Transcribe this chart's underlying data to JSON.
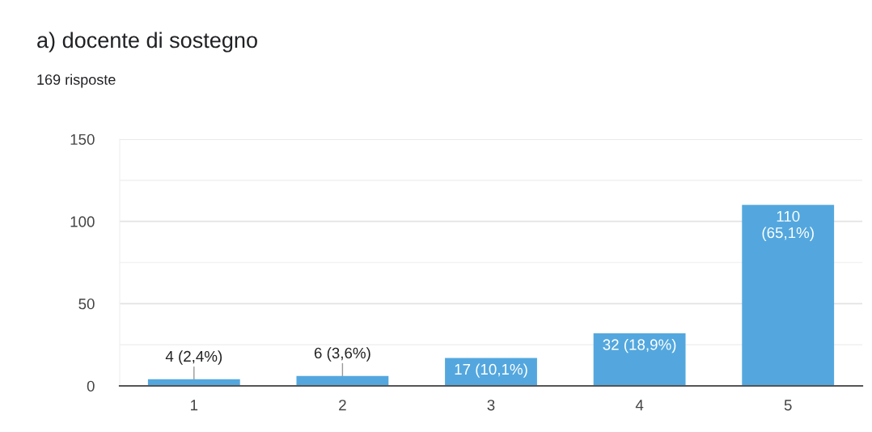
{
  "chart_data": {
    "type": "bar",
    "title": "a) docente di sostegno",
    "subtitle": "169 risposte",
    "categories": [
      "1",
      "2",
      "3",
      "4",
      "5"
    ],
    "values": [
      4,
      6,
      17,
      32,
      110
    ],
    "color": "#53a7de",
    "value_labels": [
      "4 (2,4%)",
      "6 (3,6%)",
      "17 (10,1%)",
      "32 (18,9%)",
      "110\n(65,1%)"
    ],
    "ylim": [
      0,
      150
    ],
    "yticks": [
      0,
      {
        "value": 25,
        "label": null
      },
      50,
      {
        "value": 75,
        "label": null
      },
      100,
      {
        "value": 125,
        "label": null
      },
      150
    ],
    "grid": "y"
  }
}
